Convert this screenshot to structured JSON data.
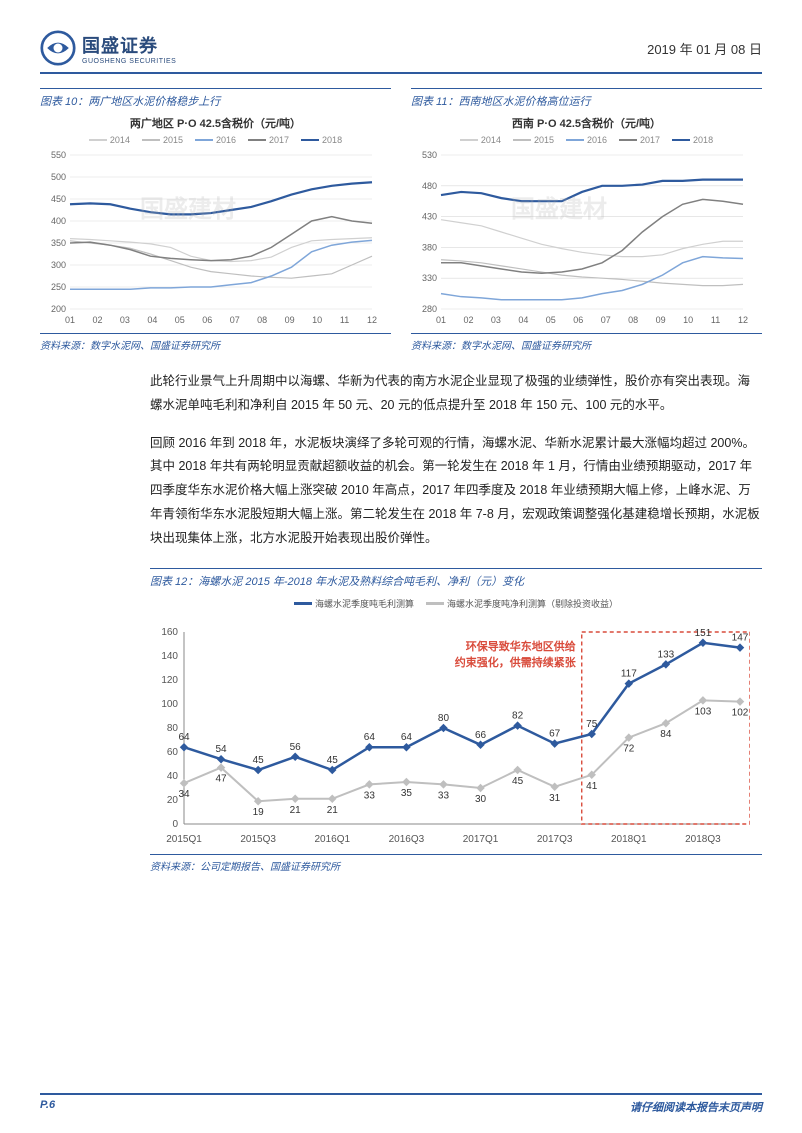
{
  "header": {
    "company_cn": "国盛证券",
    "company_en": "GUOSHENG SECURITIES",
    "date": "2019 年 01 月 08 日"
  },
  "chart10": {
    "title": "图表 10：两广地区水泥价格稳步上行",
    "subtitle": "两广地区 P·O 42.5含税价（元/吨）",
    "source": "资料来源：数字水泥网、国盛证券研究所",
    "type": "line",
    "x_ticks": [
      "01",
      "02",
      "03",
      "04",
      "05",
      "06",
      "07",
      "08",
      "09",
      "10",
      "11",
      "12"
    ],
    "ylim": [
      200,
      550
    ],
    "ytick_step": 50,
    "background_color": "#ffffff",
    "grid_color": "#d9d9d9",
    "series": [
      {
        "name": "2014",
        "color": "#d0d0d0",
        "width": 1.2,
        "data": [
          360,
          358,
          355,
          352,
          348,
          340,
          320,
          310,
          308,
          310,
          318,
          340,
          355,
          358,
          360,
          362
        ]
      },
      {
        "name": "2015",
        "color": "#bfbfbf",
        "width": 1.2,
        "data": [
          355,
          350,
          345,
          338,
          325,
          310,
          295,
          285,
          280,
          275,
          272,
          270,
          275,
          280,
          300,
          320
        ]
      },
      {
        "name": "2016",
        "color": "#7fa6d9",
        "width": 1.5,
        "data": [
          245,
          245,
          245,
          245,
          248,
          248,
          250,
          250,
          255,
          260,
          275,
          295,
          330,
          345,
          352,
          356
        ]
      },
      {
        "name": "2017",
        "color": "#808080",
        "width": 1.5,
        "data": [
          350,
          352,
          345,
          335,
          320,
          315,
          312,
          310,
          312,
          320,
          340,
          370,
          400,
          410,
          400,
          395
        ]
      },
      {
        "name": "2018",
        "color": "#2e5a9e",
        "width": 2.2,
        "data": [
          438,
          440,
          438,
          428,
          420,
          415,
          415,
          418,
          425,
          432,
          445,
          460,
          472,
          480,
          485,
          488
        ]
      }
    ],
    "watermark": "国盛建材"
  },
  "chart11": {
    "title": "图表 11：西南地区水泥价格高位运行",
    "subtitle": "西南 P·O 42.5含税价（元/吨）",
    "source": "资料来源：数字水泥网、国盛证券研究所",
    "type": "line",
    "x_ticks": [
      "01",
      "02",
      "03",
      "04",
      "05",
      "06",
      "07",
      "08",
      "09",
      "10",
      "11",
      "12"
    ],
    "ylim": [
      280,
      530
    ],
    "ytick_step": 50,
    "background_color": "#ffffff",
    "grid_color": "#d9d9d9",
    "series": [
      {
        "name": "2014",
        "color": "#d0d0d0",
        "width": 1.2,
        "data": [
          425,
          420,
          415,
          405,
          395,
          385,
          378,
          372,
          368,
          365,
          365,
          368,
          378,
          385,
          390,
          390
        ]
      },
      {
        "name": "2015",
        "color": "#bfbfbf",
        "width": 1.2,
        "data": [
          360,
          358,
          355,
          350,
          345,
          340,
          335,
          332,
          330,
          328,
          325,
          322,
          320,
          318,
          318,
          320
        ]
      },
      {
        "name": "2016",
        "color": "#7fa6d9",
        "width": 1.5,
        "data": [
          305,
          300,
          298,
          295,
          295,
          295,
          295,
          298,
          305,
          310,
          320,
          335,
          355,
          365,
          363,
          362
        ]
      },
      {
        "name": "2017",
        "color": "#808080",
        "width": 1.5,
        "data": [
          355,
          355,
          350,
          345,
          340,
          338,
          340,
          345,
          355,
          375,
          405,
          430,
          450,
          458,
          455,
          450
        ]
      },
      {
        "name": "2018",
        "color": "#2e5a9e",
        "width": 2.2,
        "data": [
          465,
          470,
          468,
          460,
          455,
          455,
          455,
          470,
          480,
          480,
          482,
          488,
          488,
          490,
          490,
          490
        ]
      }
    ],
    "watermark": "国盛建材"
  },
  "paragraphs": {
    "p1": "此轮行业景气上升周期中以海螺、华新为代表的南方水泥企业显现了极强的业绩弹性，股价亦有突出表现。海螺水泥单吨毛利和净利自 2015 年 50 元、20 元的低点提升至 2018 年 150 元、100 元的水平。",
    "p2": "回顾 2016 年到 2018 年，水泥板块演绎了多轮可观的行情，海螺水泥、华新水泥累计最大涨幅均超过 200%。其中 2018 年共有两轮明显贡献超额收益的机会。第一轮发生在 2018 年 1 月，行情由业绩预期驱动，2017 年四季度华东水泥价格大幅上涨突破 2010 年高点，2017 年四季度及 2018 年业绩预期大幅上修，上峰水泥、万年青领衔华东水泥股短期大幅上涨。第二轮发生在 2018 年 7-8 月，宏观政策调整强化基建稳增长预期，水泥板块出现集体上涨，北方水泥股开始表现出股价弹性。"
  },
  "chart12": {
    "title": "图表 12：海螺水泥 2015 年-2018 年水泥及熟料综合吨毛利、净利（元）变化",
    "source": "资料来源：公司定期报告、国盛证券研究所",
    "type": "line",
    "legend": [
      {
        "name": "海螺水泥季度吨毛利测算",
        "color": "#2e5a9e"
      },
      {
        "name": "海螺水泥季度吨净利测算（剔除投资收益）",
        "color": "#bfbfbf"
      }
    ],
    "x_labels": [
      "2015Q1",
      "2015Q3",
      "2016Q1",
      "2016Q3",
      "2017Q1",
      "2017Q3",
      "2018Q1",
      "2018Q3"
    ],
    "ylim": [
      0,
      160
    ],
    "ytick_step": 20,
    "series_gross": {
      "color": "#2e5a9e",
      "width": 2.5,
      "marker": "diamond",
      "data": [
        64,
        54,
        45,
        56,
        45,
        64,
        64,
        80,
        66,
        82,
        67,
        75,
        117,
        133,
        151,
        147
      ]
    },
    "series_net": {
      "color": "#bfbfbf",
      "width": 2,
      "marker": "diamond",
      "data": [
        34,
        47,
        19,
        21,
        21,
        33,
        35,
        33,
        30,
        45,
        31,
        41,
        72,
        84,
        103,
        102
      ]
    },
    "highlight_box": {
      "from_index": 11,
      "to_index": 15,
      "color": "#d94b3b",
      "dash": "4,3"
    },
    "annotation": {
      "text1": "环保导致华东地区供给",
      "text2": "约束强化，供需持续紧张",
      "color": "#d94b3b"
    }
  },
  "footer": {
    "page": "P.6",
    "disclaim": "请仔细阅读本报告末页声明"
  }
}
